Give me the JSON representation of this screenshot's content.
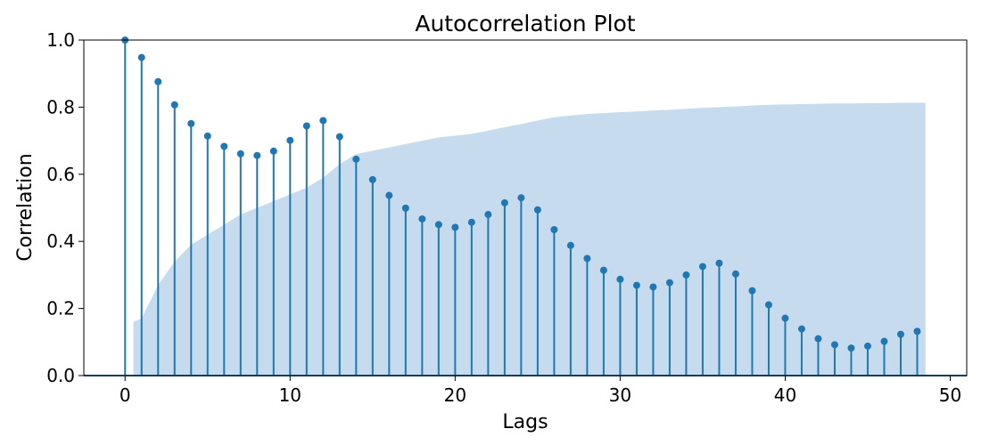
{
  "chart_data": {
    "type": "stem",
    "title": "Autocorrelation Plot",
    "xlabel": "Lags",
    "ylabel": "Correlation",
    "xlim": [
      -2.5,
      51
    ],
    "ylim": [
      0,
      1.0
    ],
    "xticks": [
      0,
      10,
      20,
      30,
      40,
      50
    ],
    "yticks": [
      0.0,
      0.2,
      0.4,
      0.6,
      0.8,
      1.0
    ],
    "xtick_labels": [
      "0",
      "10",
      "20",
      "30",
      "40",
      "50"
    ],
    "ytick_labels": [
      "0.0",
      "0.2",
      "0.4",
      "0.6",
      "0.8",
      "1.0"
    ],
    "grid": false,
    "lags": [
      0,
      1,
      2,
      3,
      4,
      5,
      6,
      7,
      8,
      9,
      10,
      11,
      12,
      13,
      14,
      15,
      16,
      17,
      18,
      19,
      20,
      21,
      22,
      23,
      24,
      25,
      26,
      27,
      28,
      29,
      30,
      31,
      32,
      33,
      34,
      35,
      36,
      37,
      38,
      39,
      40,
      41,
      42,
      43,
      44,
      45,
      46,
      47,
      48
    ],
    "values": [
      1.0,
      0.948,
      0.876,
      0.807,
      0.751,
      0.714,
      0.683,
      0.661,
      0.656,
      0.669,
      0.701,
      0.744,
      0.76,
      0.712,
      0.645,
      0.584,
      0.537,
      0.499,
      0.467,
      0.45,
      0.442,
      0.457,
      0.48,
      0.515,
      0.53,
      0.494,
      0.435,
      0.388,
      0.349,
      0.314,
      0.287,
      0.269,
      0.264,
      0.277,
      0.3,
      0.325,
      0.335,
      0.303,
      0.253,
      0.211,
      0.171,
      0.139,
      0.11,
      0.092,
      0.082,
      0.088,
      0.102,
      0.123,
      0.132
    ],
    "confidence_band": {
      "x": [
        0.5,
        1,
        2,
        3,
        4,
        5,
        6,
        7,
        8,
        9,
        10,
        11,
        12,
        13,
        14,
        15,
        16,
        17,
        18,
        19,
        20,
        21,
        22,
        23,
        24,
        25,
        26,
        27,
        28,
        29,
        30,
        31,
        32,
        33,
        34,
        35,
        36,
        37,
        38,
        39,
        40,
        41,
        42,
        43,
        44,
        45,
        46,
        47,
        48,
        48.5
      ],
      "upper": [
        0.16,
        0.17,
        0.27,
        0.34,
        0.39,
        0.42,
        0.45,
        0.48,
        0.5,
        0.52,
        0.54,
        0.56,
        0.59,
        0.63,
        0.66,
        0.67,
        0.68,
        0.69,
        0.7,
        0.71,
        0.715,
        0.72,
        0.73,
        0.74,
        0.75,
        0.76,
        0.77,
        0.775,
        0.78,
        0.782,
        0.785,
        0.787,
        0.79,
        0.792,
        0.795,
        0.798,
        0.8,
        0.802,
        0.805,
        0.807,
        0.808,
        0.809,
        0.81,
        0.811,
        0.811,
        0.812,
        0.812,
        0.813,
        0.813,
        0.813
      ]
    },
    "colors": {
      "stem": "#1f77b4",
      "band": "#c6dcee",
      "axis": "#000000"
    }
  }
}
